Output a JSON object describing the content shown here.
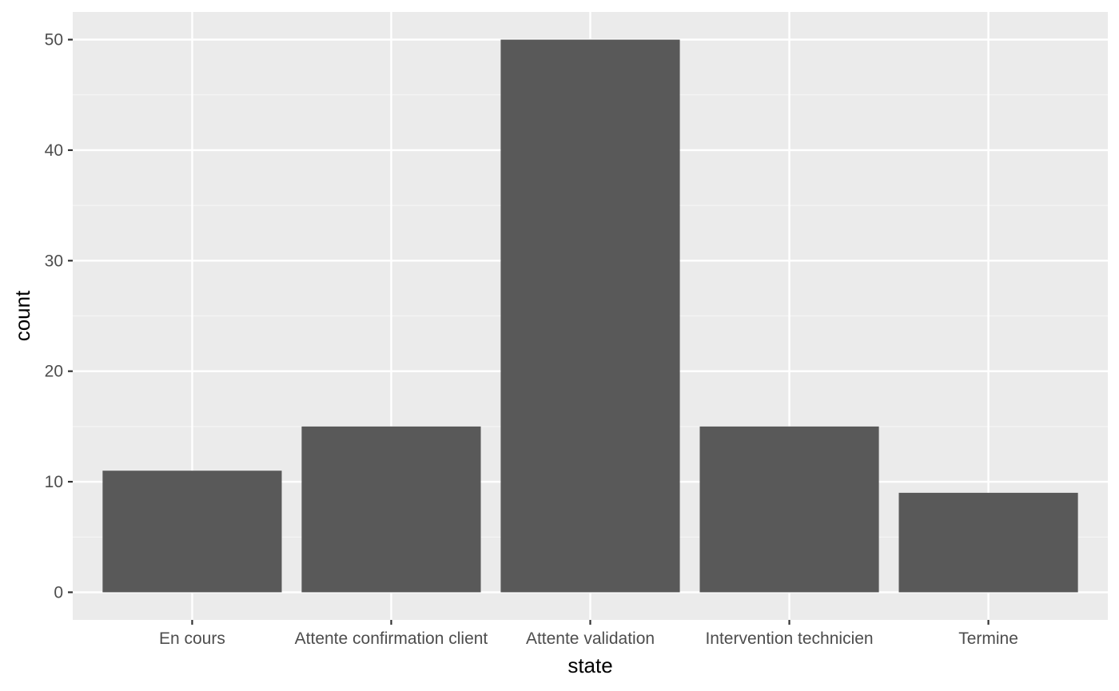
{
  "chart_data": {
    "type": "bar",
    "title": "",
    "xlabel": "state",
    "ylabel": "count",
    "categories": [
      "En cours",
      "Attente confirmation client",
      "Attente validation",
      "Intervention technicien",
      "Termine"
    ],
    "values": [
      11,
      15,
      50,
      15,
      9
    ],
    "ylim": [
      -2.5,
      52.5
    ],
    "y_ticks": [
      0,
      10,
      20,
      30,
      40,
      50
    ],
    "y_tick_labels": [
      "0",
      "10",
      "20",
      "30",
      "40",
      "50"
    ],
    "grid": true,
    "legend": "none"
  },
  "colors": {
    "panel_background": "#ebebeb",
    "grid_major": "#ffffff",
    "grid_minor": "#f5f5f5",
    "bar_fill": "#595959",
    "tick_mark": "#333333",
    "tick_text": "#4d4d4d",
    "title_text": "#000000"
  }
}
